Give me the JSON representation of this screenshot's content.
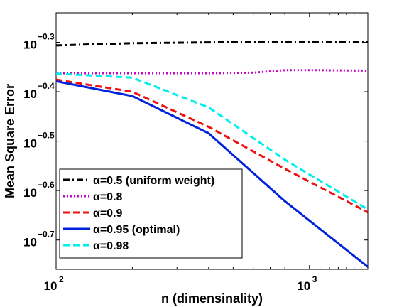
{
  "chart_data": {
    "type": "line",
    "title": "",
    "xlabel": "n (dimensinality)",
    "ylabel": "Mean Square Error",
    "xscale": "log",
    "yscale": "log",
    "xlim": [
      100,
      1700
    ],
    "ylim": [
      0.174,
      0.575
    ],
    "x_ticks": [
      {
        "value": 100,
        "base": "10",
        "exp": "2"
      },
      {
        "value": 1000,
        "base": "10",
        "exp": "3"
      }
    ],
    "y_ticks": [
      {
        "value": 0.5012,
        "base": "10",
        "exp": "−0.3"
      },
      {
        "value": 0.3981,
        "base": "10",
        "exp": "−0.4"
      },
      {
        "value": 0.3162,
        "base": "10",
        "exp": "−0.5"
      },
      {
        "value": 0.2512,
        "base": "10",
        "exp": "−0.6"
      },
      {
        "value": 0.1995,
        "base": "10",
        "exp": "−0.7"
      }
    ],
    "grid": false,
    "legend_position": "bottom-left",
    "series": [
      {
        "name": "α=0.5 (uniform weight)",
        "color": "#000000",
        "dash": "dashdot",
        "x": [
          100,
          200,
          400,
          800,
          1700
        ],
        "y": [
          0.494,
          0.499,
          0.501,
          0.502,
          0.502
        ]
      },
      {
        "name": "α=0.8",
        "color": "#cc00cc",
        "dash": "dotted",
        "x": [
          100,
          200,
          400,
          600,
          800,
          1100,
          1700
        ],
        "y": [
          0.434,
          0.434,
          0.434,
          0.435,
          0.44,
          0.44,
          0.439
        ]
      },
      {
        "name": "α=0.9",
        "color": "#ee1111",
        "dash": "dashed",
        "x": [
          100,
          200,
          400,
          800,
          1700
        ],
        "y": [
          0.421,
          0.398,
          0.338,
          0.278,
          0.227
        ]
      },
      {
        "name": "α=0.95 (optimal)",
        "color": "#0022dd",
        "dash": "solid",
        "x": [
          100,
          200,
          400,
          800,
          1700
        ],
        "y": [
          0.418,
          0.39,
          0.328,
          0.239,
          0.176
        ]
      },
      {
        "name": "α=0.98",
        "color": "#00eeee",
        "dash": "dashed",
        "x": [
          100,
          200,
          400,
          800,
          1700
        ],
        "y": [
          0.433,
          0.425,
          0.37,
          0.29,
          0.23
        ]
      }
    ]
  }
}
